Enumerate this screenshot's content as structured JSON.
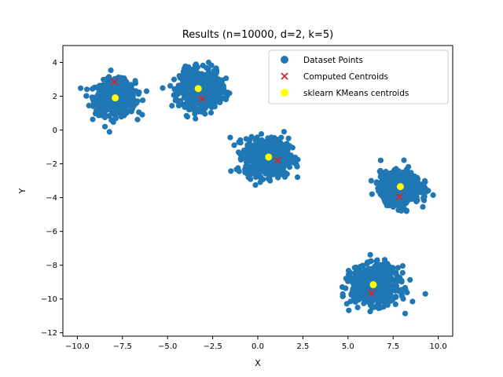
{
  "chart_data": {
    "type": "scatter",
    "title": "Results (n=10000, d=2, k=5)",
    "xlabel": "X",
    "ylabel": "Y",
    "xlim": [
      -10.8,
      10.8
    ],
    "ylim": [
      -12.2,
      5.0
    ],
    "xticks": [
      -10.0,
      -7.5,
      -5.0,
      -2.5,
      0.0,
      2.5,
      5.0,
      7.5,
      10.0
    ],
    "xtick_labels": [
      "−10.0",
      "−7.5",
      "−5.0",
      "−2.5",
      "0.0",
      "2.5",
      "5.0",
      "7.5",
      "10.0"
    ],
    "yticks": [
      4,
      2,
      0,
      -2,
      -4,
      -6,
      -8,
      -10,
      -12
    ],
    "ytick_labels": [
      "4",
      "2",
      "0",
      "−2",
      "−4",
      "−6",
      "−8",
      "−10",
      "−12"
    ],
    "grid": false,
    "legend_position": "top-right",
    "clusters": [
      {
        "center": [
          -7.9,
          1.9
        ],
        "spread": [
          0.55,
          0.5
        ]
      },
      {
        "center": [
          -3.2,
          2.4
        ],
        "spread": [
          0.55,
          0.55
        ]
      },
      {
        "center": [
          0.5,
          -1.6
        ],
        "spread": [
          0.6,
          0.55
        ]
      },
      {
        "center": [
          7.9,
          -3.4
        ],
        "spread": [
          0.55,
          0.45
        ]
      },
      {
        "center": [
          6.5,
          -9.2
        ],
        "spread": [
          0.65,
          0.55
        ]
      }
    ],
    "series": [
      {
        "name": "Dataset Points",
        "marker": "circle",
        "color": "#1f77b4",
        "n": 10000
      },
      {
        "name": "Computed Centroids",
        "marker": "x",
        "color": "#d62728",
        "points": [
          [
            -7.95,
            2.85
          ],
          [
            -3.1,
            1.85
          ],
          [
            1.1,
            -1.8
          ],
          [
            7.85,
            -3.95
          ],
          [
            6.3,
            -9.65
          ]
        ]
      },
      {
        "name": "sklearn KMeans centroids",
        "marker": "circle",
        "color": "#ffff00",
        "points": [
          [
            -7.9,
            1.9
          ],
          [
            -3.3,
            2.45
          ],
          [
            0.6,
            -1.6
          ],
          [
            7.9,
            -3.35
          ],
          [
            6.4,
            -9.15
          ]
        ]
      }
    ]
  }
}
